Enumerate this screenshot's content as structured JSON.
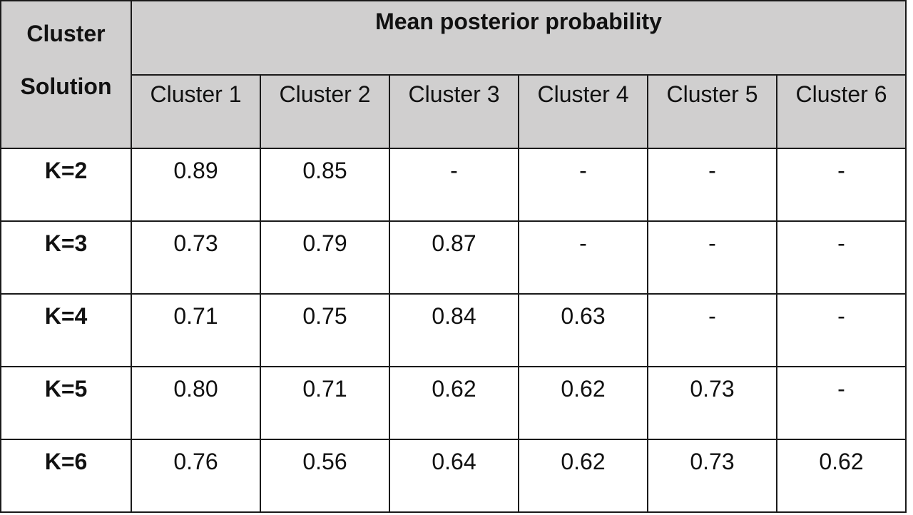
{
  "table": {
    "header": {
      "corner": [
        "Cluster",
        "Solution"
      ],
      "group": "Mean posterior probability",
      "columns": [
        "Cluster 1",
        "Cluster 2",
        "Cluster 3",
        "Cluster 4",
        "Cluster 5",
        "Cluster 6"
      ]
    },
    "rows": [
      [
        "K=2",
        "0.89",
        "0.85",
        "-",
        "-",
        "-",
        "-"
      ],
      [
        "K=3",
        "0.73",
        "0.79",
        "0.87",
        "-",
        "-",
        "-"
      ],
      [
        "K=4",
        "0.71",
        "0.75",
        "0.84",
        "0.63",
        "-",
        "-"
      ],
      [
        "K=5",
        "0.80",
        "0.71",
        "0.62",
        "0.62",
        "0.73",
        "-"
      ],
      [
        "K=6",
        "0.76",
        "0.56",
        "0.64",
        "0.62",
        "0.73",
        "0.62"
      ]
    ]
  }
}
